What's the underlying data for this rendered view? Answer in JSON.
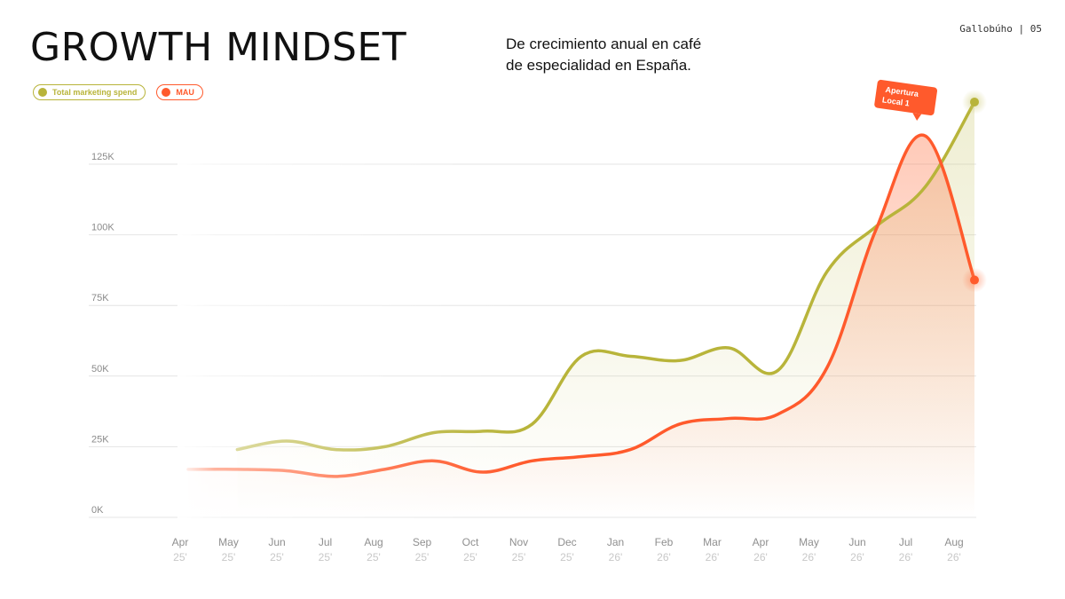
{
  "header": {
    "title": "GROWTH MINDSET",
    "subtitle": "De crecimiento anual en café de especialidad en España.",
    "page_ref": "Gallobúho | 05"
  },
  "colors": {
    "spend": "#b8b43a",
    "mau": "#ff5a2c",
    "grid": "#e4e4e4"
  },
  "legend": [
    {
      "label": "Total marketing spend",
      "color": "#b8b43a"
    },
    {
      "label": "MAU",
      "color": "#ff5a2c"
    }
  ],
  "chart_data": {
    "type": "line",
    "categories": [
      "Apr",
      "May",
      "Jun",
      "Jul",
      "Aug",
      "Sep",
      "Oct",
      "Nov",
      "Dec",
      "Jan",
      "Feb",
      "Mar",
      "Apr",
      "May",
      "Jun",
      "Jul",
      "Aug"
    ],
    "category_years": [
      "25'",
      "25'",
      "25'",
      "25'",
      "25'",
      "25'",
      "25'",
      "25'",
      "25'",
      "26'",
      "26'",
      "26'",
      "26'",
      "26'",
      "26'",
      "26'",
      "26'"
    ],
    "y_ticks": [
      "0K",
      "25K",
      "50K",
      "75K",
      "100K",
      "125K"
    ],
    "ylim": [
      0,
      140000
    ],
    "series": [
      {
        "name": "Total marketing spend",
        "color": "#b8b43a",
        "values": [
          null,
          24000,
          27000,
          24000,
          25000,
          30000,
          30500,
          33000,
          57000,
          57000,
          55500,
          60000,
          52000,
          87000,
          103000,
          117000,
          147000
        ]
      },
      {
        "name": "MAU",
        "color": "#ff5a2c",
        "values": [
          17000,
          17000,
          16500,
          14500,
          17000,
          20000,
          16000,
          20000,
          21500,
          24000,
          33000,
          35000,
          36500,
          53000,
          102000,
          135000,
          84000
        ]
      }
    ],
    "annotations": [
      {
        "text": "Apertura Local 1",
        "category_index": 15,
        "value": 135000
      }
    ]
  }
}
